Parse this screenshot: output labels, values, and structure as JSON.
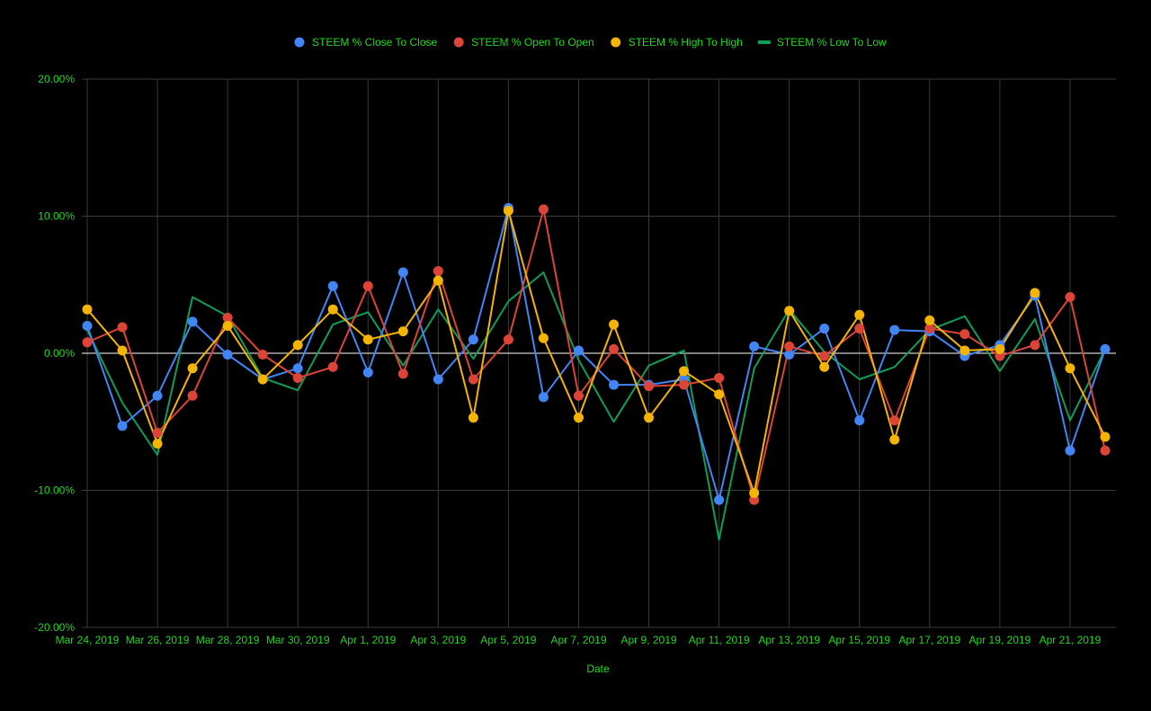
{
  "chart_data": {
    "type": "line",
    "title": "",
    "xlabel": "Date",
    "ylabel": "",
    "ylim": [
      -20,
      20
    ],
    "ytick_values": [
      -20,
      -10,
      0,
      10,
      20
    ],
    "ytick_labels": [
      "-20.00%",
      "-10.00%",
      "0.00%",
      "10.00%",
      "20.00%"
    ],
    "x": [
      "Mar 24, 2019",
      "Mar 25, 2019",
      "Mar 26, 2019",
      "Mar 27, 2019",
      "Mar 28, 2019",
      "Mar 29, 2019",
      "Mar 30, 2019",
      "Mar 31, 2019",
      "Apr 1, 2019",
      "Apr 2, 2019",
      "Apr 3, 2019",
      "Apr 4, 2019",
      "Apr 5, 2019",
      "Apr 6, 2019",
      "Apr 7, 2019",
      "Apr 8, 2019",
      "Apr 9, 2019",
      "Apr 10, 2019",
      "Apr 11, 2019",
      "Apr 12, 2019",
      "Apr 13, 2019",
      "Apr 14, 2019",
      "Apr 15, 2019",
      "Apr 16, 2019",
      "Apr 17, 2019",
      "Apr 18, 2019",
      "Apr 19, 2019",
      "Apr 20, 2019",
      "Apr 21, 2019",
      "Apr 22, 2019"
    ],
    "x_tick_labels": [
      "Mar 24, 2019",
      "Mar 26, 2019",
      "Mar 28, 2019",
      "Mar 30, 2019",
      "Apr 1, 2019",
      "Apr 3, 2019",
      "Apr 5, 2019",
      "Apr 7, 2019",
      "Apr 9, 2019",
      "Apr 11, 2019",
      "Apr 13, 2019",
      "Apr 15, 2019",
      "Apr 17, 2019",
      "Apr 19, 2019",
      "Apr 21, 2019"
    ],
    "legend_position": "top",
    "grid": true,
    "series": [
      {
        "name": "STEEM % Close To Close",
        "color": "#4285f4",
        "markers": true,
        "values": [
          2.0,
          -5.3,
          -3.1,
          2.3,
          -0.1,
          -1.9,
          -1.1,
          4.9,
          -1.4,
          5.9,
          -1.9,
          1.0,
          10.6,
          -3.2,
          0.2,
          -2.3,
          -2.3,
          -1.9,
          -10.7,
          0.5,
          -0.1,
          1.8,
          -4.9,
          1.7,
          1.6,
          -0.2,
          0.6,
          4.2,
          -7.1,
          0.3
        ]
      },
      {
        "name": "STEEM % Open To Open",
        "color": "#db4437",
        "markers": true,
        "values": [
          0.8,
          1.9,
          -5.8,
          -3.1,
          2.6,
          -0.1,
          -1.8,
          -1.0,
          4.9,
          -1.5,
          6.0,
          -1.9,
          1.0,
          10.5,
          -3.1,
          0.3,
          -2.4,
          -2.3,
          -1.8,
          -10.7,
          0.5,
          -0.2,
          1.8,
          -4.9,
          1.8,
          1.4,
          -0.2,
          0.6,
          4.1,
          -7.1
        ]
      },
      {
        "name": "STEEM % High To High",
        "color": "#f4b400",
        "markers": true,
        "values": [
          3.2,
          0.2,
          -6.6,
          -1.1,
          2.0,
          -1.9,
          0.6,
          3.2,
          1.0,
          1.6,
          5.3,
          -4.7,
          10.4,
          1.1,
          -4.7,
          2.1,
          -4.7,
          -1.3,
          -3.0,
          -10.2,
          3.1,
          -1.0,
          2.8,
          -6.3,
          2.4,
          0.2,
          0.3,
          4.4,
          -1.1,
          -6.1
        ]
      },
      {
        "name": "STEEM % Low To Low",
        "color": "#0f9d58",
        "markers": false,
        "values": [
          1.7,
          -3.6,
          -7.4,
          4.1,
          2.7,
          -1.8,
          -2.7,
          2.1,
          3.0,
          -0.9,
          3.2,
          -0.4,
          3.8,
          5.9,
          -0.5,
          -5.0,
          -0.9,
          0.2,
          -13.6,
          -1.1,
          3.2,
          0.1,
          -1.9,
          -1.0,
          1.7,
          2.7,
          -1.3,
          2.5,
          -4.9,
          0.3
        ]
      }
    ]
  }
}
